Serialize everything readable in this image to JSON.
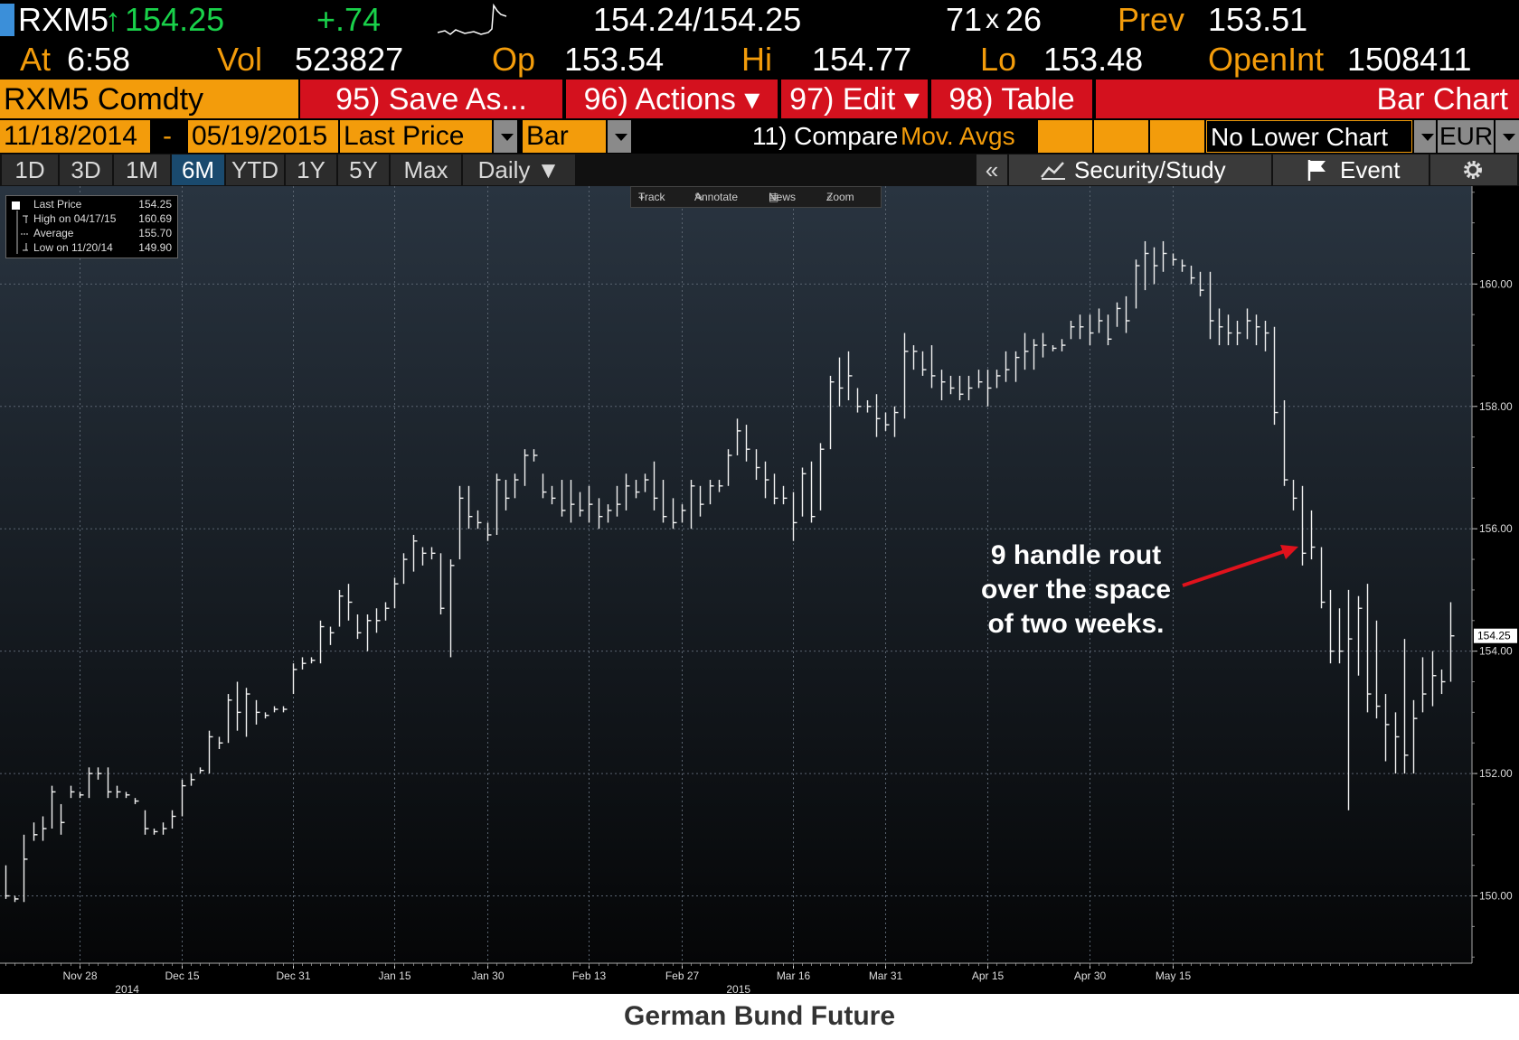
{
  "quote": {
    "ticker": "RXM5",
    "up_arrow": "↑",
    "last": "154.25",
    "change": "+.74",
    "bid_ask": "154.24/154.25",
    "size_bid": "71",
    "size_x": "x",
    "size_ask": "26",
    "prev_label": "Prev",
    "prev_value": "153.51",
    "at_label": "At",
    "at_time": "6:58",
    "vol_label": "Vol",
    "vol_value": "523827",
    "op_label": "Op",
    "op_value": "153.54",
    "hi_label": "Hi",
    "hi_value": "154.77",
    "lo_label": "Lo",
    "lo_value": "153.48",
    "openint_label": "OpenInt",
    "openint_value": "1508411"
  },
  "toolbar": {
    "security": "RXM5 Comdty",
    "save_as": "95) Save As...",
    "actions": "96) Actions ▾",
    "edit": "97) Edit ▾",
    "table": "98) Table",
    "chart_type_title": "Bar Chart",
    "date_from": "11/18/2014",
    "dash": "-",
    "date_to": "05/19/2015",
    "field": "Last Price",
    "style": "Bar",
    "compare": "11) Compare",
    "mov_avgs": "Mov. Avgs",
    "lower_chart": "No Lower Chart",
    "currency": "EUR",
    "periods": [
      "1D",
      "3D",
      "1M",
      "6M",
      "YTD",
      "1Y",
      "5Y",
      "Max"
    ],
    "active_period": "6M",
    "frequency": "Daily ▼",
    "collapse": "«",
    "security_study": "Security/Study",
    "event": "Event",
    "chart_tools": [
      "Track",
      "Annotate",
      "News",
      "Zoom"
    ]
  },
  "legend": {
    "rows": [
      {
        "label": "Last Price",
        "value": "154.25"
      },
      {
        "label": "High on 04/17/15",
        "value": "160.69"
      },
      {
        "label": "Average",
        "value": "155.70"
      },
      {
        "label": "Low on 11/20/14",
        "value": "149.90"
      }
    ]
  },
  "annotation": {
    "line1": "9 handle rout",
    "line2": "over the space",
    "line3": "of two weeks."
  },
  "caption": "German Bund Future",
  "colors": {
    "amber": "#f39c0b",
    "bloomberg_red": "#d4111e",
    "up_green": "#19d14a",
    "annotation_arrow": "#e0121c"
  },
  "chart_data": {
    "type": "bar",
    "style": "ohlc",
    "title": "",
    "xlabel": "",
    "ylabel": "",
    "ylim": [
      148.9,
      161.6
    ],
    "y_ticks": [
      150,
      152,
      154,
      156,
      158,
      160
    ],
    "y_tick_labels": [
      "150.00",
      "152.00",
      "154.00",
      "156.00",
      "158.00",
      "160.00"
    ],
    "last_price_tag": "154.25",
    "x_tick_labels": [
      "Nov 28",
      "Dec 15",
      "Dec 31",
      "Jan 15",
      "Jan 30",
      "Feb 13",
      "Feb 27",
      "Mar 16",
      "Mar 31",
      "Apr 15",
      "Apr 30",
      "May 15"
    ],
    "year_labels": [
      {
        "label": "2014",
        "near": "Dec 15"
      },
      {
        "label": "2015",
        "near": "Mar 16"
      }
    ],
    "grid": true,
    "bars": [
      {
        "high": 150.5,
        "low": 149.95,
        "close": 150.0
      },
      {
        "high": 150.0,
        "low": 149.9,
        "close": 149.95
      },
      {
        "high": 151.0,
        "low": 149.9,
        "close": 150.6
      },
      {
        "high": 151.2,
        "low": 150.9,
        "close": 151.0
      },
      {
        "high": 151.3,
        "low": 150.9,
        "close": 151.1
      },
      {
        "high": 151.8,
        "low": 151.1,
        "close": 151.7
      },
      {
        "high": 151.5,
        "low": 151.0,
        "close": 151.2
      },
      {
        "high": 151.8,
        "low": 151.6,
        "close": 151.7
      },
      {
        "high": 151.7,
        "low": 151.6,
        "close": 151.65
      },
      {
        "high": 152.1,
        "low": 151.6,
        "close": 152.0
      },
      {
        "high": 152.1,
        "low": 151.9,
        "close": 152.0
      },
      {
        "high": 152.1,
        "low": 151.6,
        "close": 151.7
      },
      {
        "high": 151.8,
        "low": 151.6,
        "close": 151.7
      },
      {
        "high": 151.7,
        "low": 151.6,
        "close": 151.65
      },
      {
        "high": 151.6,
        "low": 151.5,
        "close": 151.55
      },
      {
        "high": 151.4,
        "low": 151.0,
        "close": 151.1
      },
      {
        "high": 151.1,
        "low": 151.0,
        "close": 151.05
      },
      {
        "high": 151.2,
        "low": 151.0,
        "close": 151.1
      },
      {
        "high": 151.4,
        "low": 151.1,
        "close": 151.3
      },
      {
        "high": 151.9,
        "low": 151.3,
        "close": 151.8
      },
      {
        "high": 152.0,
        "low": 151.8,
        "close": 151.9
      },
      {
        "high": 152.1,
        "low": 152.0,
        "close": 152.05
      },
      {
        "high": 152.7,
        "low": 152.0,
        "close": 152.6
      },
      {
        "high": 152.6,
        "low": 152.4,
        "close": 152.5
      },
      {
        "high": 153.3,
        "low": 152.5,
        "close": 153.2
      },
      {
        "high": 153.5,
        "low": 152.7,
        "close": 153.0
      },
      {
        "high": 153.4,
        "low": 152.6,
        "close": 153.3
      },
      {
        "high": 153.2,
        "low": 152.8,
        "close": 153.0
      },
      {
        "high": 153.0,
        "low": 152.9,
        "close": 152.95
      },
      {
        "high": 153.1,
        "low": 153.0,
        "close": 153.05
      },
      {
        "high": 153.1,
        "low": 153.0,
        "close": 153.05
      },
      {
        "high": 153.8,
        "low": 153.3,
        "close": 153.7
      },
      {
        "high": 153.9,
        "low": 153.7,
        "close": 153.8
      },
      {
        "high": 153.9,
        "low": 153.8,
        "close": 153.85
      },
      {
        "high": 154.5,
        "low": 153.8,
        "close": 154.4
      },
      {
        "high": 154.4,
        "low": 154.1,
        "close": 154.3
      },
      {
        "high": 155.0,
        "low": 154.4,
        "close": 154.9
      },
      {
        "high": 155.1,
        "low": 154.5,
        "close": 154.8
      },
      {
        "high": 154.6,
        "low": 154.2,
        "close": 154.3
      },
      {
        "high": 154.6,
        "low": 154.0,
        "close": 154.5
      },
      {
        "high": 154.7,
        "low": 154.3,
        "close": 154.5
      },
      {
        "high": 154.8,
        "low": 154.5,
        "close": 154.7
      },
      {
        "high": 155.2,
        "low": 154.7,
        "close": 155.1
      },
      {
        "high": 155.6,
        "low": 155.1,
        "close": 155.5
      },
      {
        "high": 155.9,
        "low": 155.3,
        "close": 155.8
      },
      {
        "high": 155.7,
        "low": 155.4,
        "close": 155.6
      },
      {
        "high": 155.7,
        "low": 155.5,
        "close": 155.6
      },
      {
        "high": 155.6,
        "low": 154.6,
        "close": 154.7
      },
      {
        "high": 155.5,
        "low": 153.9,
        "close": 155.4
      },
      {
        "high": 156.7,
        "low": 155.5,
        "close": 156.5
      },
      {
        "high": 156.7,
        "low": 156.0,
        "close": 156.2
      },
      {
        "high": 156.3,
        "low": 156.0,
        "close": 156.1
      },
      {
        "high": 156.1,
        "low": 155.8,
        "close": 155.9
      },
      {
        "high": 156.9,
        "low": 155.9,
        "close": 156.8
      },
      {
        "high": 156.8,
        "low": 156.3,
        "close": 156.5
      },
      {
        "high": 156.9,
        "low": 156.5,
        "close": 156.8
      },
      {
        "high": 157.3,
        "low": 156.7,
        "close": 157.2
      },
      {
        "high": 157.3,
        "low": 157.1,
        "close": 157.2
      },
      {
        "high": 156.9,
        "low": 156.5,
        "close": 156.6
      },
      {
        "high": 156.7,
        "low": 156.4,
        "close": 156.5
      },
      {
        "high": 156.8,
        "low": 156.2,
        "close": 156.3
      },
      {
        "high": 156.8,
        "low": 156.1,
        "close": 156.4
      },
      {
        "high": 156.6,
        "low": 156.2,
        "close": 156.3
      },
      {
        "high": 156.7,
        "low": 156.1,
        "close": 156.4
      },
      {
        "high": 156.5,
        "low": 156.0,
        "close": 156.2
      },
      {
        "high": 156.4,
        "low": 156.1,
        "close": 156.3
      },
      {
        "high": 156.7,
        "low": 156.2,
        "close": 156.4
      },
      {
        "high": 156.9,
        "low": 156.3,
        "close": 156.7
      },
      {
        "high": 156.8,
        "low": 156.5,
        "close": 156.6
      },
      {
        "high": 156.9,
        "low": 156.6,
        "close": 156.8
      },
      {
        "high": 157.1,
        "low": 156.3,
        "close": 156.5
      },
      {
        "high": 156.8,
        "low": 156.1,
        "close": 156.2
      },
      {
        "high": 156.5,
        "low": 156.0,
        "close": 156.1
      },
      {
        "high": 156.4,
        "low": 156.1,
        "close": 156.3
      },
      {
        "high": 156.8,
        "low": 156.0,
        "close": 156.7
      },
      {
        "high": 156.7,
        "low": 156.2,
        "close": 156.4
      },
      {
        "high": 156.8,
        "low": 156.4,
        "close": 156.7
      },
      {
        "high": 156.8,
        "low": 156.6,
        "close": 156.7
      },
      {
        "high": 157.3,
        "low": 156.7,
        "close": 157.2
      },
      {
        "high": 157.8,
        "low": 157.2,
        "close": 157.6
      },
      {
        "high": 157.7,
        "low": 157.1,
        "close": 157.3
      },
      {
        "high": 157.3,
        "low": 156.8,
        "close": 157.0
      },
      {
        "high": 157.1,
        "low": 156.5,
        "close": 156.8
      },
      {
        "high": 156.9,
        "low": 156.4,
        "close": 156.5
      },
      {
        "high": 156.7,
        "low": 156.4,
        "close": 156.5
      },
      {
        "high": 156.6,
        "low": 155.8,
        "close": 156.1
      },
      {
        "high": 157.0,
        "low": 156.2,
        "close": 156.9
      },
      {
        "high": 157.1,
        "low": 156.1,
        "close": 156.2
      },
      {
        "high": 157.4,
        "low": 156.3,
        "close": 157.3
      },
      {
        "high": 158.5,
        "low": 157.3,
        "close": 158.4
      },
      {
        "high": 158.8,
        "low": 158.0,
        "close": 158.3
      },
      {
        "high": 158.9,
        "low": 158.1,
        "close": 158.5
      },
      {
        "high": 158.3,
        "low": 157.9,
        "close": 158.0
      },
      {
        "high": 158.1,
        "low": 157.9,
        "close": 158.0
      },
      {
        "high": 158.2,
        "low": 157.5,
        "close": 157.8
      },
      {
        "high": 157.9,
        "low": 157.6,
        "close": 157.7
      },
      {
        "high": 158.0,
        "low": 157.5,
        "close": 157.9
      },
      {
        "high": 159.2,
        "low": 157.8,
        "close": 158.9
      },
      {
        "high": 159.0,
        "low": 158.6,
        "close": 158.9
      },
      {
        "high": 158.9,
        "low": 158.5,
        "close": 158.6
      },
      {
        "high": 159.0,
        "low": 158.3,
        "close": 158.5
      },
      {
        "high": 158.6,
        "low": 158.1,
        "close": 158.4
      },
      {
        "high": 158.5,
        "low": 158.2,
        "close": 158.3
      },
      {
        "high": 158.5,
        "low": 158.1,
        "close": 158.2
      },
      {
        "high": 158.5,
        "low": 158.1,
        "close": 158.3
      },
      {
        "high": 158.6,
        "low": 158.3,
        "close": 158.4
      },
      {
        "high": 158.6,
        "low": 158.0,
        "close": 158.3
      },
      {
        "high": 158.6,
        "low": 158.3,
        "close": 158.5
      },
      {
        "high": 158.9,
        "low": 158.4,
        "close": 158.6
      },
      {
        "high": 158.9,
        "low": 158.4,
        "close": 158.8
      },
      {
        "high": 159.2,
        "low": 158.6,
        "close": 158.9
      },
      {
        "high": 159.1,
        "low": 158.6,
        "close": 159.0
      },
      {
        "high": 159.2,
        "low": 158.8,
        "close": 159.0
      },
      {
        "high": 159.0,
        "low": 158.9,
        "close": 158.95
      },
      {
        "high": 159.1,
        "low": 158.9,
        "close": 159.0
      },
      {
        "high": 159.4,
        "low": 159.1,
        "close": 159.3
      },
      {
        "high": 159.5,
        "low": 159.1,
        "close": 159.3
      },
      {
        "high": 159.5,
        "low": 159.0,
        "close": 159.2
      },
      {
        "high": 159.6,
        "low": 159.2,
        "close": 159.4
      },
      {
        "high": 159.5,
        "low": 159.0,
        "close": 159.1
      },
      {
        "high": 159.7,
        "low": 159.3,
        "close": 159.6
      },
      {
        "high": 159.8,
        "low": 159.2,
        "close": 159.4
      },
      {
        "high": 160.4,
        "low": 159.6,
        "close": 160.3
      },
      {
        "high": 160.7,
        "low": 159.9,
        "close": 160.5
      },
      {
        "high": 160.6,
        "low": 160.0,
        "close": 160.3
      },
      {
        "high": 160.7,
        "low": 160.2,
        "close": 160.5
      },
      {
        "high": 160.5,
        "low": 160.3,
        "close": 160.4
      },
      {
        "high": 160.4,
        "low": 160.2,
        "close": 160.3
      },
      {
        "high": 160.3,
        "low": 160.0,
        "close": 160.1
      },
      {
        "high": 160.2,
        "low": 159.8,
        "close": 159.9
      },
      {
        "high": 160.2,
        "low": 159.1,
        "close": 159.4
      },
      {
        "high": 159.6,
        "low": 159.0,
        "close": 159.3
      },
      {
        "high": 159.5,
        "low": 159.0,
        "close": 159.2
      },
      {
        "high": 159.4,
        "low": 159.0,
        "close": 159.2
      },
      {
        "high": 159.6,
        "low": 159.1,
        "close": 159.4
      },
      {
        "high": 159.5,
        "low": 159.0,
        "close": 159.3
      },
      {
        "high": 159.4,
        "low": 158.9,
        "close": 159.2
      },
      {
        "high": 159.3,
        "low": 157.7,
        "close": 157.9
      },
      {
        "high": 158.1,
        "low": 156.7,
        "close": 156.8
      },
      {
        "high": 156.8,
        "low": 156.3,
        "close": 156.5
      },
      {
        "high": 156.7,
        "low": 155.4,
        "close": 155.6
      },
      {
        "high": 156.3,
        "low": 155.5,
        "close": 155.7
      },
      {
        "high": 155.7,
        "low": 154.7,
        "close": 154.8
      },
      {
        "high": 155.0,
        "low": 153.8,
        "close": 154.0
      },
      {
        "high": 154.7,
        "low": 153.8,
        "close": 154.0
      },
      {
        "high": 155.0,
        "low": 151.4,
        "close": 154.2
      },
      {
        "high": 154.9,
        "low": 153.6,
        "close": 154.7
      },
      {
        "high": 155.1,
        "low": 153.0,
        "close": 153.3
      },
      {
        "high": 154.5,
        "low": 152.9,
        "close": 153.1
      },
      {
        "high": 153.3,
        "low": 152.2,
        "close": 152.8
      },
      {
        "high": 153.0,
        "low": 152.0,
        "close": 152.6
      },
      {
        "high": 154.2,
        "low": 152.0,
        "close": 152.3
      },
      {
        "high": 153.2,
        "low": 152.0,
        "close": 152.9
      },
      {
        "high": 153.9,
        "low": 153.0,
        "close": 153.3
      },
      {
        "high": 154.0,
        "low": 153.1,
        "close": 153.6
      },
      {
        "high": 153.7,
        "low": 153.3,
        "close": 153.5
      },
      {
        "high": 154.8,
        "low": 153.5,
        "close": 154.25
      }
    ]
  }
}
